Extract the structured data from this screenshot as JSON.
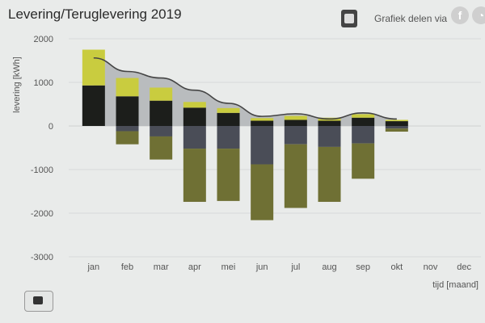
{
  "header": {
    "title": "Levering/Teruglevering 2019",
    "share_label": "Grafiek delen via"
  },
  "chart_data": {
    "type": "bar",
    "title": "Levering/Teruglevering 2019",
    "xlabel": "tijd [maand]",
    "ylabel": "levering [kWh]",
    "ylim": [
      -3000,
      2000
    ],
    "yticks": [
      2000,
      1000,
      0,
      -1000,
      -2000,
      -3000
    ],
    "categories": [
      "jan",
      "feb",
      "mar",
      "apr",
      "mei",
      "jun",
      "jul",
      "aug",
      "sep",
      "okt",
      "nov",
      "dec"
    ],
    "series": [
      {
        "values": [
          930,
          680,
          580,
          420,
          300,
          120,
          140,
          120,
          190,
          110,
          null,
          null
        ],
        "color": "#1c1e1b"
      },
      {
        "values": [
          820,
          420,
          300,
          130,
          110,
          60,
          90,
          70,
          80,
          30,
          null,
          null
        ],
        "color": "#c9cc3f"
      },
      {
        "values": [
          0,
          -120,
          -240,
          -520,
          -520,
          -880,
          -420,
          -480,
          -400,
          -60,
          null,
          null
        ],
        "color": "#4a4d57"
      },
      {
        "values": [
          0,
          -300,
          -530,
          -1220,
          -1200,
          -1280,
          -1460,
          -1260,
          -810,
          -70,
          null,
          null
        ],
        "color": "#6f7034"
      }
    ],
    "line_values": [
      1560,
      1250,
      1100,
      820,
      520,
      220,
      280,
      160,
      300,
      160,
      null,
      null
    ],
    "line_color": "#444444",
    "area_color": "#b9bcbe",
    "grid": true
  }
}
